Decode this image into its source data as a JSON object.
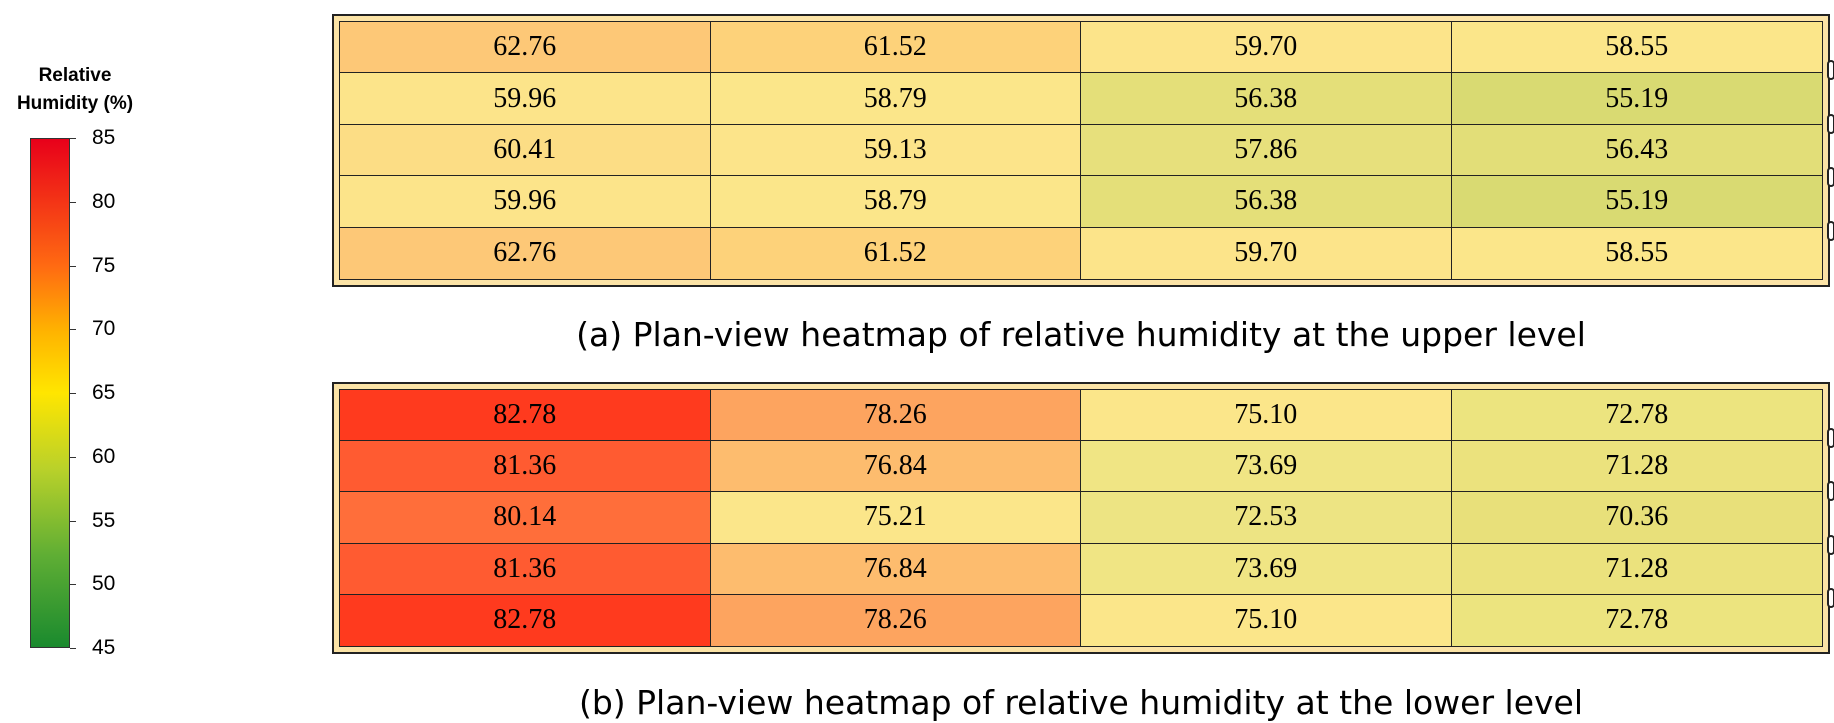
{
  "legend": {
    "title_line1": "Relative",
    "title_line2": "Humidity (%)",
    "min": 45,
    "max": 85,
    "ticks": [
      "85",
      "80",
      "75",
      "70",
      "65",
      "60",
      "55",
      "50",
      "45"
    ],
    "colors": [
      "#1a8a2e",
      "#5fae34",
      "#b9d12a",
      "#ffe600",
      "#ffb400",
      "#ff6a12",
      "#e8001a"
    ]
  },
  "chart_data": [
    {
      "type": "heatmap",
      "title": "(a) Plan-view heatmap of relative humidity at the upper level",
      "rows": 5,
      "cols": 4,
      "values": [
        [
          62.76,
          61.52,
          59.7,
          58.55
        ],
        [
          59.96,
          58.79,
          56.38,
          55.19
        ],
        [
          60.41,
          59.13,
          57.86,
          56.43
        ],
        [
          59.96,
          58.79,
          56.38,
          55.19
        ],
        [
          62.76,
          61.52,
          59.7,
          58.55
        ]
      ],
      "labels": [
        [
          "62.76",
          "61.52",
          "59.70",
          "58.55"
        ],
        [
          "59.96",
          "58.79",
          "56.38",
          "55.19"
        ],
        [
          "60.41",
          "59.13",
          "57.86",
          "56.43"
        ],
        [
          "59.96",
          "58.79",
          "56.38",
          "55.19"
        ],
        [
          "62.76",
          "61.52",
          "59.70",
          "58.55"
        ]
      ],
      "colors": [
        [
          "#fdc877",
          "#fdd27a",
          "#fce48a",
          "#fbe68a"
        ],
        [
          "#fce48a",
          "#fbe68a",
          "#e4df79",
          "#d9da72"
        ],
        [
          "#fcdd85",
          "#fce48a",
          "#e7e07c",
          "#e2de78"
        ],
        [
          "#fce48a",
          "#fbe68a",
          "#e4df79",
          "#d9da72"
        ],
        [
          "#fdc877",
          "#fdd27a",
          "#fce48a",
          "#fbe68a"
        ]
      ]
    },
    {
      "type": "heatmap",
      "title": "(b) Plan-view heatmap of relative humidity at the lower level",
      "rows": 5,
      "cols": 4,
      "values": [
        [
          82.78,
          78.26,
          75.1,
          72.78
        ],
        [
          81.36,
          76.84,
          73.69,
          71.28
        ],
        [
          80.14,
          75.21,
          72.53,
          70.36
        ],
        [
          81.36,
          76.84,
          73.69,
          71.28
        ],
        [
          82.78,
          78.26,
          75.1,
          72.78
        ]
      ],
      "labels": [
        [
          "82.78",
          "78.26",
          "75.10",
          "72.78"
        ],
        [
          "81.36",
          "76.84",
          "73.69",
          "71.28"
        ],
        [
          "80.14",
          "75.21",
          "72.53",
          "70.36"
        ],
        [
          "81.36",
          "76.84",
          "73.69",
          "71.28"
        ],
        [
          "82.78",
          "78.26",
          "75.10",
          "72.78"
        ]
      ],
      "colors": [
        [
          "#ff3a1e",
          "#fda45f",
          "#fbe68a",
          "#ece47f"
        ],
        [
          "#ff5b31",
          "#fdbc6e",
          "#f0e584",
          "#ebe27d"
        ],
        [
          "#ff6e3a",
          "#fbe68a",
          "#ede483",
          "#e8e07a"
        ],
        [
          "#ff5b31",
          "#fdbc6e",
          "#f0e584",
          "#ebe27d"
        ],
        [
          "#ff3a1e",
          "#fda45f",
          "#fbe68a",
          "#ece47f"
        ]
      ]
    }
  ]
}
